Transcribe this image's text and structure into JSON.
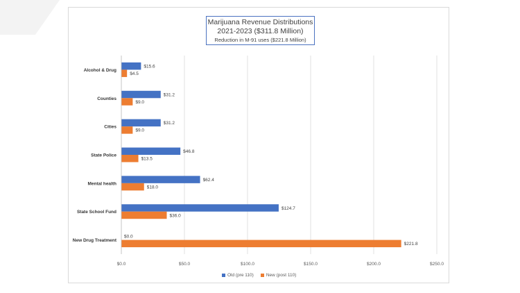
{
  "chart_data": {
    "type": "bar",
    "orientation": "horizontal",
    "title": "Marijuana Revenue Distributions",
    "title_line2": "2021-2023 ($311.8 Million)",
    "subtitle": "Reduction in M-91 uses ($221.8 Million)",
    "categories": [
      "Alcohol & Drug",
      "Counties",
      "Cities",
      "State Police",
      "Mental health",
      "State School Fund",
      "New Drug Treatment"
    ],
    "series": [
      {
        "name": "Old (pre 110)",
        "color": "#4472c4",
        "values": [
          15.6,
          31.2,
          31.2,
          46.8,
          62.4,
          124.7,
          0.0
        ],
        "labels": [
          "$15.6",
          "$31.2",
          "$31.2",
          "$46.8",
          "$62.4",
          "$124.7",
          "$0.0"
        ]
      },
      {
        "name": "New (post 110)",
        "color": "#ed7d31",
        "values": [
          4.5,
          9.0,
          9.0,
          13.5,
          18.0,
          36.0,
          221.8
        ],
        "labels": [
          "$4.5",
          "$9.0",
          "$9.0",
          "$13.5",
          "$18.0",
          "$36.0",
          "$221.8"
        ]
      }
    ],
    "xlim": [
      0,
      250
    ],
    "xticks": [
      0,
      50,
      100,
      150,
      200,
      250
    ],
    "xtick_labels": [
      "$0.0",
      "$50.0",
      "$100.0",
      "$150.0",
      "$200.0",
      "$250.0"
    ],
    "grid": true,
    "legend_position": "bottom"
  }
}
